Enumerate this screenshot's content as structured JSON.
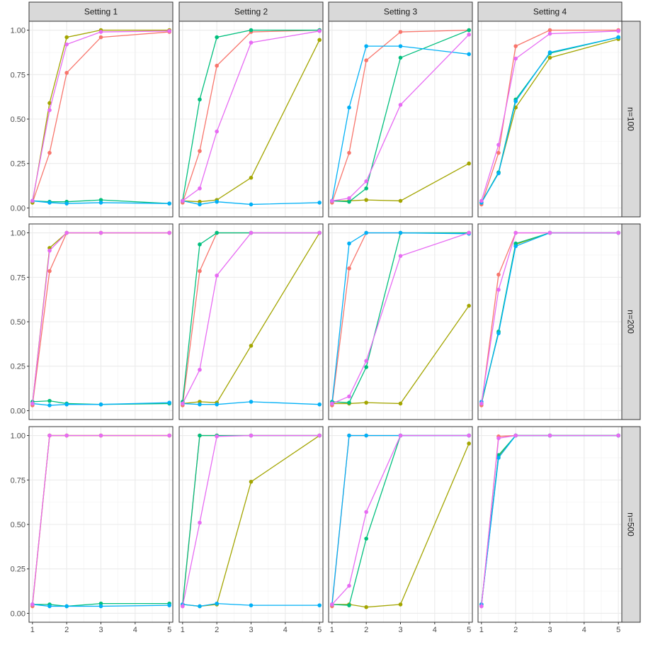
{
  "chart_data": {
    "type": "line",
    "facet_columns": [
      "Setting 1",
      "Setting 2",
      "Setting 3",
      "Setting 4"
    ],
    "facet_rows": [
      "n=100",
      "n=200",
      "n=500"
    ],
    "x_ticks": [
      1,
      2,
      3,
      4,
      5
    ],
    "y_ticks": [
      0.0,
      0.25,
      0.5,
      0.75,
      1.0
    ],
    "y_tick_labels": [
      "0.00",
      "0.25",
      "0.50",
      "0.75",
      "1.00"
    ],
    "xlim": [
      0.9,
      5.1
    ],
    "ylim": [
      -0.05,
      1.05
    ],
    "x": [
      1,
      1.5,
      2,
      3,
      5
    ],
    "grid": true,
    "legend": "none",
    "series_colors": [
      "#F8766D",
      "#A3A500",
      "#00BF7D",
      "#00B0F6",
      "#E76BF3"
    ],
    "panels": [
      [
        {
          "series": [
            [
              0.03,
              0.31,
              0.76,
              0.96,
              0.99
            ],
            [
              0.03,
              0.59,
              0.96,
              1.0,
              1.0
            ],
            [
              0.04,
              0.035,
              0.035,
              0.045,
              0.025
            ],
            [
              0.04,
              0.03,
              0.025,
              0.03,
              0.025
            ],
            [
              0.04,
              0.55,
              0.92,
              0.99,
              0.995
            ]
          ]
        },
        {
          "series": [
            [
              0.03,
              0.32,
              0.8,
              0.99,
              1.0
            ],
            [
              0.04,
              0.035,
              0.045,
              0.17,
              0.945
            ],
            [
              0.04,
              0.61,
              0.96,
              1.0,
              1.0
            ],
            [
              0.04,
              0.02,
              0.035,
              0.02,
              0.03
            ],
            [
              0.04,
              0.11,
              0.43,
              0.93,
              0.995
            ]
          ]
        },
        {
          "series": [
            [
              0.03,
              0.31,
              0.83,
              0.99,
              1.0
            ],
            [
              0.04,
              0.04,
              0.045,
              0.04,
              0.25
            ],
            [
              0.04,
              0.035,
              0.11,
              0.845,
              1.0
            ],
            [
              0.04,
              0.565,
              0.91,
              0.91,
              0.865
            ],
            [
              0.04,
              0.055,
              0.15,
              0.58,
              0.975
            ]
          ]
        },
        {
          "series": [
            [
              0.02,
              0.31,
              0.91,
              1.0,
              1.0
            ],
            [
              0.03,
              0.2,
              0.565,
              0.845,
              0.95
            ],
            [
              0.03,
              0.2,
              0.61,
              0.87,
              0.96
            ],
            [
              0.03,
              0.195,
              0.6,
              0.875,
              0.96
            ],
            [
              0.04,
              0.355,
              0.84,
              0.98,
              0.995
            ]
          ]
        }
      ],
      [
        {
          "series": [
            [
              0.03,
              0.785,
              1.0,
              1.0,
              1.0
            ],
            [
              0.04,
              0.915,
              1.0,
              1.0,
              1.0
            ],
            [
              0.05,
              0.055,
              0.04,
              0.035,
              0.04
            ],
            [
              0.04,
              0.03,
              0.035,
              0.035,
              0.045
            ],
            [
              0.04,
              0.9,
              1.0,
              1.0,
              1.0
            ]
          ]
        },
        {
          "series": [
            [
              0.03,
              0.785,
              1.0,
              1.0,
              1.0
            ],
            [
              0.04,
              0.05,
              0.045,
              0.365,
              1.0
            ],
            [
              0.05,
              0.935,
              1.0,
              1.0,
              1.0
            ],
            [
              0.04,
              0.035,
              0.035,
              0.05,
              0.035
            ],
            [
              0.04,
              0.23,
              0.76,
              1.0,
              1.0
            ]
          ]
        },
        {
          "series": [
            [
              0.03,
              0.8,
              1.0,
              1.0,
              1.0
            ],
            [
              0.04,
              0.04,
              0.045,
              0.04,
              0.59
            ],
            [
              0.05,
              0.045,
              0.245,
              1.0,
              1.0
            ],
            [
              0.04,
              0.94,
              1.0,
              1.0,
              0.995
            ],
            [
              0.04,
              0.08,
              0.28,
              0.87,
              1.0
            ]
          ]
        },
        {
          "series": [
            [
              0.03,
              0.765,
              1.0,
              1.0,
              1.0
            ],
            [
              0.04,
              0.44,
              0.935,
              1.0,
              1.0
            ],
            [
              0.04,
              0.445,
              0.94,
              1.0,
              1.0
            ],
            [
              0.05,
              0.435,
              0.925,
              1.0,
              1.0
            ],
            [
              0.04,
              0.68,
              1.0,
              1.0,
              1.0
            ]
          ]
        }
      ],
      [
        {
          "series": [
            [
              0.04,
              1.0,
              1.0,
              1.0,
              1.0
            ],
            [
              0.05,
              1.0,
              1.0,
              1.0,
              1.0
            ],
            [
              0.05,
              0.05,
              0.04,
              0.055,
              0.055
            ],
            [
              0.05,
              0.04,
              0.04,
              0.04,
              0.045
            ],
            [
              0.05,
              1.0,
              1.0,
              1.0,
              1.0
            ]
          ]
        },
        {
          "series": [
            [
              0.04,
              1.0,
              1.0,
              1.0,
              1.0
            ],
            [
              0.05,
              0.04,
              0.05,
              0.74,
              1.0
            ],
            [
              0.05,
              1.0,
              1.0,
              1.0,
              1.0
            ],
            [
              0.05,
              0.04,
              0.055,
              0.045,
              0.045
            ],
            [
              0.04,
              0.51,
              0.995,
              1.0,
              1.0
            ]
          ]
        },
        {
          "series": [
            [
              0.04,
              1.0,
              1.0,
              1.0,
              1.0
            ],
            [
              0.05,
              0.05,
              0.035,
              0.05,
              0.955
            ],
            [
              0.05,
              0.045,
              0.42,
              1.0,
              1.0
            ],
            [
              0.05,
              1.0,
              1.0,
              1.0,
              1.0
            ],
            [
              0.05,
              0.155,
              0.57,
              1.0,
              1.0
            ]
          ]
        },
        {
          "series": [
            [
              0.04,
              0.995,
              1.0,
              1.0,
              1.0
            ],
            [
              0.05,
              0.885,
              1.0,
              1.0,
              1.0
            ],
            [
              0.05,
              0.89,
              1.0,
              1.0,
              1.0
            ],
            [
              0.05,
              0.875,
              1.0,
              1.0,
              1.0
            ],
            [
              0.04,
              0.985,
              1.0,
              1.0,
              1.0
            ]
          ]
        }
      ]
    ]
  }
}
